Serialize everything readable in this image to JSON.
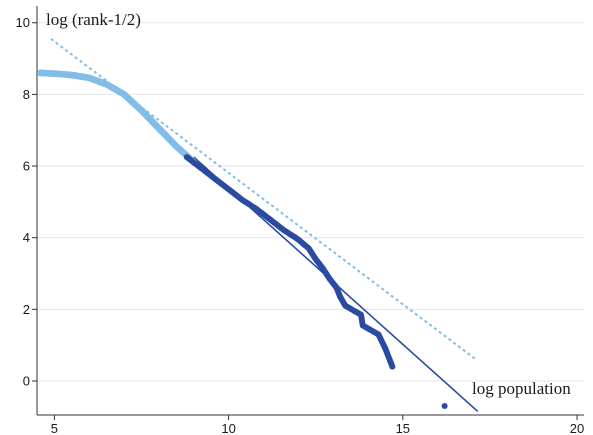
{
  "chart_data": {
    "type": "scatter",
    "xlabel": "log population",
    "ylabel": "log (rank-1/2)",
    "xlim": [
      4.5,
      20.2
    ],
    "ylim": [
      -0.95,
      10.3
    ],
    "x_ticks": [
      5,
      10,
      15,
      20
    ],
    "y_ticks": [
      0,
      2,
      4,
      6,
      8,
      10
    ],
    "grid": "horizontal",
    "colors": {
      "light": "#82bde8",
      "dark": "#2b4ba0",
      "grid": "#e6e6e6"
    },
    "series": [
      {
        "style": "points",
        "color": "light",
        "x": [
          4.6,
          5.0,
          5.5,
          6.0,
          6.5,
          7.0,
          7.5,
          8.0,
          8.5,
          8.9
        ],
        "y": [
          8.6,
          8.58,
          8.54,
          8.46,
          8.28,
          8.0,
          7.55,
          7.05,
          6.55,
          6.2
        ]
      },
      {
        "style": "points",
        "color": "dark",
        "x": [
          8.8,
          9.2,
          9.6,
          10.0,
          10.4,
          10.8,
          11.2,
          11.6,
          12.0,
          12.3,
          12.5,
          12.7,
          12.9,
          13.1,
          13.2,
          13.35,
          13.8,
          13.85,
          14.3,
          14.5,
          14.7,
          16.2
        ],
        "y": [
          6.25,
          5.95,
          5.65,
          5.35,
          5.05,
          4.8,
          4.5,
          4.2,
          3.95,
          3.7,
          3.4,
          3.15,
          2.85,
          2.6,
          2.35,
          2.1,
          1.85,
          1.55,
          1.3,
          0.9,
          0.4,
          -0.7
        ]
      },
      {
        "style": "dashed-line",
        "color": "light",
        "x": [
          4.9,
          17.1
        ],
        "y": [
          9.55,
          0.6
        ]
      },
      {
        "style": "solid-line",
        "color": "dark",
        "x": [
          9.0,
          17.15
        ],
        "y": [
          6.25,
          -0.85
        ]
      }
    ]
  }
}
